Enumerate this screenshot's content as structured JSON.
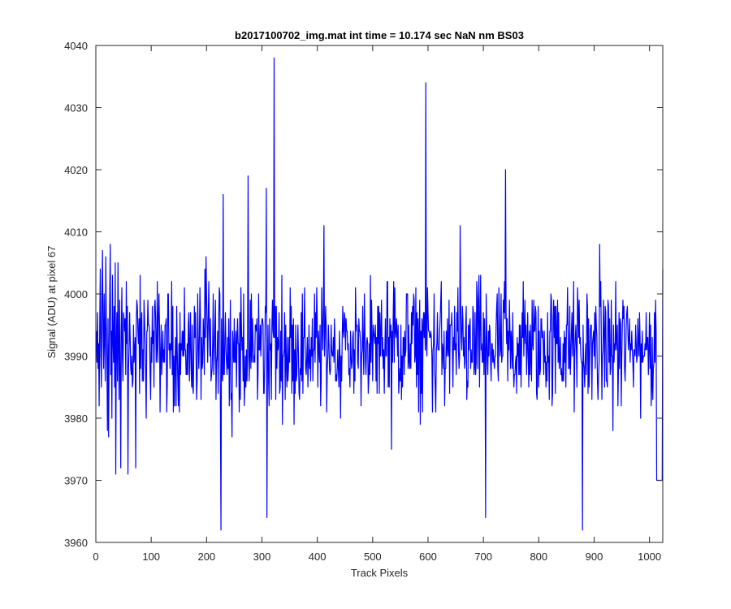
{
  "chart_data": {
    "type": "line",
    "title": "b2017100702_img.mat int time = 10.174 sec  NaN nm BS03",
    "xlabel": "Track Pixels",
    "ylabel": "Signal (ADU) at pixel 67",
    "xlim": [
      0,
      1024
    ],
    "ylim": [
      3960,
      4040
    ],
    "xticks": [
      0,
      100,
      200,
      300,
      400,
      500,
      600,
      700,
      800,
      900,
      1000
    ],
    "yticks": [
      3960,
      3970,
      3980,
      3990,
      4000,
      4010,
      4020,
      4030,
      4040
    ],
    "grid": false,
    "legend": "none",
    "line_color": "#0000ff",
    "series": [
      {
        "values": [
          3994,
          3989,
          3997,
          3988,
          3992,
          3982,
          3995,
          4004,
          3990,
          3985,
          3999,
          4007,
          3994,
          3988,
          4000,
          3992,
          3986,
          4006,
          3995,
          3989,
          3978,
          3996,
          3977,
          3991,
          3999,
          4008,
          3987,
          3994,
          3980,
          4003,
          3993,
          3989,
          3998,
          3985,
          4005,
          3971,
          3992,
          3997,
          3986,
          4005,
          3991,
          3983,
          3999,
          3988,
          3972,
          3994,
          4001,
          3990,
          3986,
          3997
        ],
        "x_step": 1
      }
    ],
    "notable_points": [
      {
        "x": 57,
        "y": 3971
      },
      {
        "x": 71,
        "y": 3972
      },
      {
        "x": 225,
        "y": 3962
      },
      {
        "x": 229,
        "y": 4016
      },
      {
        "x": 307,
        "y": 4017
      },
      {
        "x": 308,
        "y": 3964
      },
      {
        "x": 321,
        "y": 4038
      },
      {
        "x": 595,
        "y": 4034
      },
      {
        "x": 703,
        "y": 3964
      },
      {
        "x": 739,
        "y": 4020
      },
      {
        "x": 878,
        "y": 3962
      },
      {
        "x": 1012,
        "y": 3970
      }
    ]
  }
}
